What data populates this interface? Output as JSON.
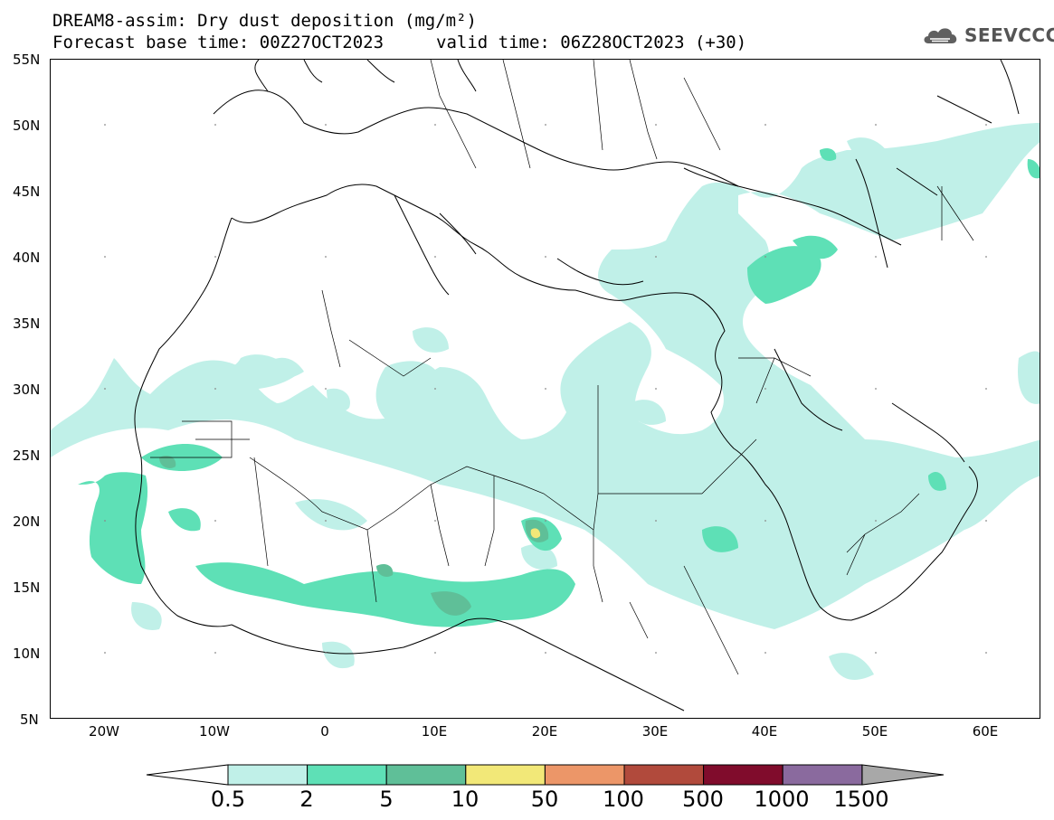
{
  "title_line1": "DREAM8-assim: Dry dust deposition (mg/m²)",
  "title_line2": "Forecast base time: 00Z27OCT2023",
  "valid_time": "valid time: 06Z28OCT2023 (+30)",
  "logo": {
    "text": "SEEVCCC",
    "icon": "cloud-icon"
  },
  "map": {
    "lat_labels": [
      "55N",
      "50N",
      "45N",
      "40N",
      "35N",
      "30N",
      "25N",
      "20N",
      "15N",
      "10N",
      "5N"
    ],
    "lon_labels": [
      "20W",
      "10W",
      "0",
      "10E",
      "20E",
      "30E",
      "40E",
      "50E",
      "60E"
    ],
    "lat_range": [
      5,
      55
    ],
    "lon_range": [
      -25,
      65
    ]
  },
  "legend": {
    "labels": [
      "0.5",
      "2",
      "5",
      "10",
      "50",
      "100",
      "500",
      "1000",
      "1500"
    ],
    "colors": [
      "#c0f0e8",
      "#5ee0b6",
      "#5fbf98",
      "#f2e878",
      "#ec9668",
      "#b14a3c",
      "#800c2c",
      "#8a6a9e",
      "#a8a8a8"
    ],
    "under_color": "#ffffff"
  },
  "colors": {
    "level1": "#c0f0e8",
    "level2": "#5ee0b6",
    "level3": "#5fbf98",
    "level4": "#f2e878"
  }
}
